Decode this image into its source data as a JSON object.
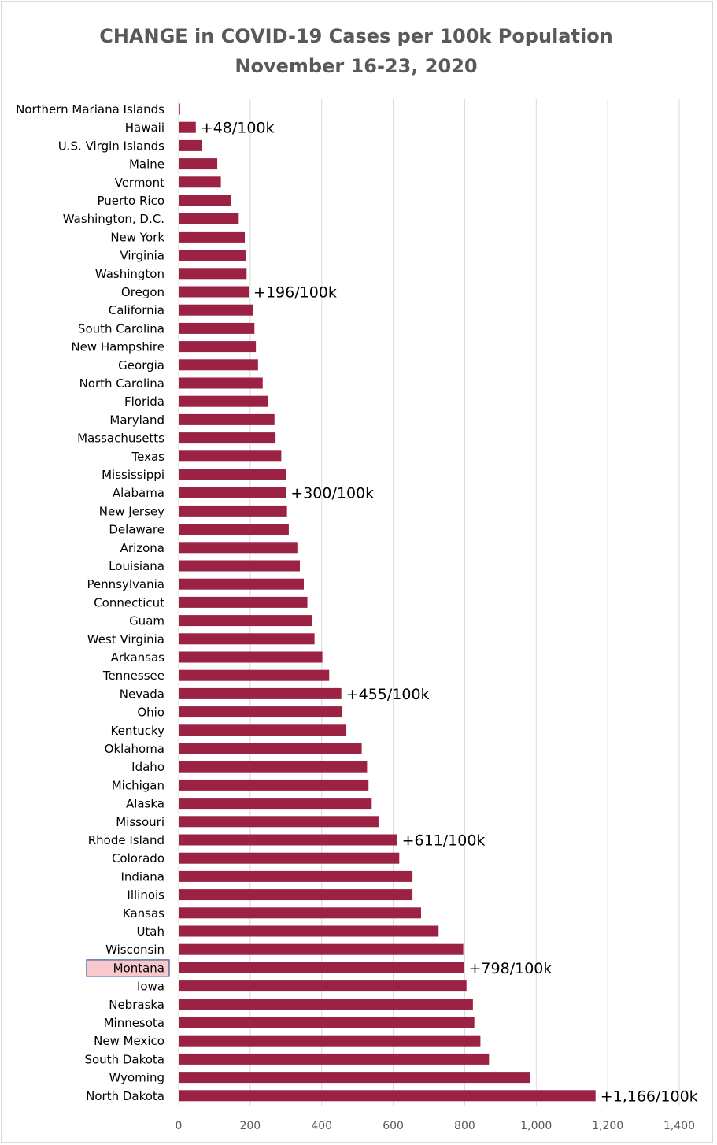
{
  "chart_data": {
    "type": "bar",
    "orientation": "horizontal",
    "title": "CHANGE in COVID-19 Cases per 100k Population",
    "subtitle": "November 16-23, 2020",
    "xlim": [
      0,
      1400
    ],
    "xticks": [
      0,
      200,
      400,
      600,
      800,
      1000,
      1200,
      1400
    ],
    "xtick_labels": [
      "0",
      "200",
      "400",
      "600",
      "800",
      "1,000",
      "1,200",
      "1,400"
    ],
    "grid": "vertical",
    "bar_color": "#9B2242",
    "highlight": {
      "category": "Montana",
      "fill": "#F8C8CC",
      "stroke": "#2F5597"
    },
    "categories": [
      "Northern Mariana Islands",
      "Hawaii",
      "U.S. Virgin Islands",
      "Maine",
      "Vermont",
      "Puerto Rico",
      "Washington, D.C.",
      "New York",
      "Virginia",
      "Washington",
      "Oregon",
      "California",
      "South Carolina",
      "New Hampshire",
      "Georgia",
      "North Carolina",
      "Florida",
      "Maryland",
      "Massachusetts",
      "Texas",
      "Mississippi",
      "Alabama",
      "New Jersey",
      "Delaware",
      "Arizona",
      "Louisiana",
      "Pennsylvania",
      "Connecticut",
      "Guam",
      "West Virginia",
      "Arkansas",
      "Tennessee",
      "Nevada",
      "Ohio",
      "Kentucky",
      "Oklahoma",
      "Idaho",
      "Michigan",
      "Alaska",
      "Missouri",
      "Rhode Island",
      "Colorado",
      "Indiana",
      "Illinois",
      "Kansas",
      "Utah",
      "Wisconsin",
      "Montana",
      "Iowa",
      "Nebraska",
      "Minnesota",
      "New Mexico",
      "South Dakota",
      "Wyoming",
      "North Dakota"
    ],
    "values": [
      4,
      48,
      66,
      108,
      118,
      147,
      168,
      185,
      187,
      190,
      196,
      209,
      212,
      216,
      222,
      235,
      249,
      268,
      271,
      287,
      300,
      300,
      303,
      308,
      332,
      339,
      350,
      360,
      372,
      380,
      402,
      421,
      455,
      458,
      469,
      512,
      527,
      531,
      540,
      559,
      611,
      617,
      654,
      654,
      678,
      727,
      796,
      798,
      805,
      823,
      827,
      844,
      868,
      982,
      1166
    ],
    "annotations": [
      {
        "category": "Hawaii",
        "text": "+48/100k"
      },
      {
        "category": "Oregon",
        "text": "+196/100k"
      },
      {
        "category": "Alabama",
        "text": "+300/100k"
      },
      {
        "category": "Nevada",
        "text": "+455/100k"
      },
      {
        "category": "Rhode Island",
        "text": "+611/100k"
      },
      {
        "category": "Montana",
        "text": "+798/100k"
      },
      {
        "category": "North Dakota",
        "text": "+1,166/100k"
      }
    ]
  }
}
